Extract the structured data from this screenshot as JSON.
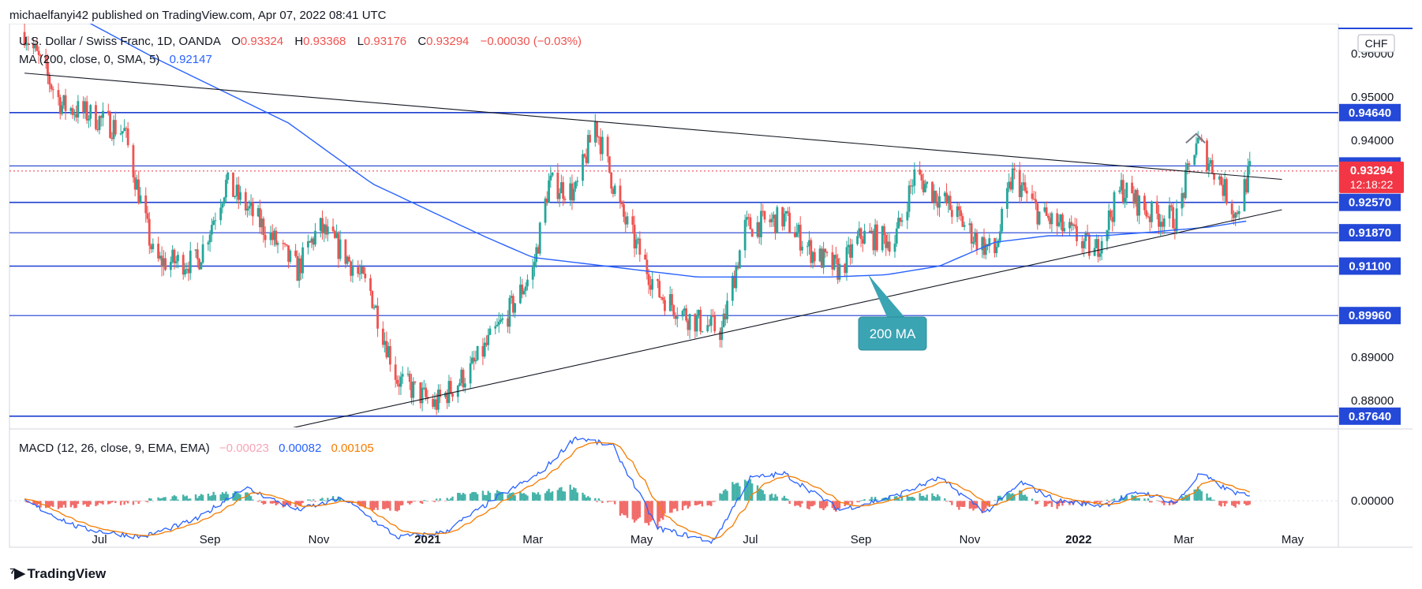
{
  "publish_line": "michaelfanyi42 published on TradingView.com, Apr 07, 2022 08:41 UTC",
  "footer_brand": "TradingView",
  "legend": {
    "symbol": "U.S. Dollar / Swiss Franc, 1D, OANDA",
    "o_label": "O",
    "o_value": "0.93324",
    "h_label": "H",
    "h_value": "0.93368",
    "l_label": "L",
    "l_value": "0.93176",
    "c_label": "C",
    "c_value": "0.93294",
    "change": "−0.00030 (−0.03%)",
    "ma_label": "MA (200, close, 0, SMA, 5)",
    "ma_value": "0.92147",
    "macd_label": "MACD (12, 26, close, 9, EMA, EMA)",
    "macd_hist": "−0.00023",
    "macd_line": "0.00082",
    "macd_signal": "0.00105"
  },
  "currency_badge": "CHF",
  "annotation": "200 MA",
  "countdown": "12:18:22",
  "colors": {
    "up": "#26a69a",
    "down": "#ef5350",
    "ma": "#2962ff",
    "level": "#1e3fd1",
    "macd": "#2962ff",
    "signal": "#f57c00",
    "tag": "#2449d8",
    "price_tag": "#f23645",
    "annotation": "#3aa4b3"
  },
  "chart_data": {
    "type": "candlestick",
    "x_ticks": [
      "Jul",
      "Sep",
      "Nov",
      "2021",
      "Mar",
      "May",
      "Jul",
      "Sep",
      "Nov",
      "2022",
      "Mar",
      "May"
    ],
    "y_ticks": [
      "0.96000",
      "0.95000",
      "0.94000",
      "0.89000",
      "0.88000"
    ],
    "y_range": [
      0.8735,
      0.9615
    ],
    "last_price": "0.93294",
    "horizontal_levels": [
      {
        "value": 0.9464,
        "label": "0.94640"
      },
      {
        "value": 0.9341,
        "label": "0.93410"
      },
      {
        "value": 0.9257,
        "label": "0.92570"
      },
      {
        "value": 0.9187,
        "label": "0.91870"
      },
      {
        "value": 0.911,
        "label": "0.91100"
      },
      {
        "value": 0.8996,
        "label": "0.89960"
      },
      {
        "value": 0.8764,
        "label": "0.87640"
      }
    ],
    "trendlines": [
      {
        "name": "descending",
        "from": [
          "2020-05-20",
          0.9555
        ],
        "to": [
          "2022-04-25",
          0.931
        ]
      },
      {
        "name": "ascending",
        "from": [
          "2020-10-15",
          0.8735
        ],
        "to": [
          "2022-04-25",
          0.924
        ]
      }
    ],
    "ma200_anchors": [
      [
        "2020-08-01",
        0.959
      ],
      [
        "2020-10-15",
        0.944
      ],
      [
        "2020-12-01",
        0.93
      ],
      [
        "2021-02-01",
        0.918
      ],
      [
        "2021-03-01",
        0.913
      ],
      [
        "2021-04-01",
        0.9115
      ],
      [
        "2021-05-01",
        0.91
      ],
      [
        "2021-06-01",
        0.9085
      ],
      [
        "2021-07-01",
        0.9085
      ],
      [
        "2021-08-15",
        0.9085
      ],
      [
        "2021-09-15",
        0.909
      ],
      [
        "2021-10-15",
        0.911
      ],
      [
        "2021-11-15",
        0.9165
      ],
      [
        "2021-12-15",
        0.918
      ],
      [
        "2022-01-15",
        0.918
      ],
      [
        "2022-02-15",
        0.919
      ],
      [
        "2022-03-15",
        0.92
      ],
      [
        "2022-04-07",
        0.9215
      ]
    ],
    "price_anchors": [
      [
        "2020-05-20",
        0.965
      ],
      [
        "2020-06-10",
        0.948
      ],
      [
        "2020-06-25",
        0.946
      ],
      [
        "2020-07-15",
        0.942
      ],
      [
        "2020-08-01",
        0.912
      ],
      [
        "2020-08-25",
        0.912
      ],
      [
        "2020-09-10",
        0.93
      ],
      [
        "2020-10-01",
        0.92
      ],
      [
        "2020-10-20",
        0.91
      ],
      [
        "2020-11-01",
        0.92
      ],
      [
        "2020-11-15",
        0.914
      ],
      [
        "2020-11-30",
        0.905
      ],
      [
        "2020-12-15",
        0.885
      ],
      [
        "2021-01-05",
        0.879
      ],
      [
        "2021-01-25",
        0.887
      ],
      [
        "2021-02-15",
        0.9
      ],
      [
        "2021-03-01",
        0.91
      ],
      [
        "2021-03-10",
        0.93
      ],
      [
        "2021-03-25",
        0.928
      ],
      [
        "2021-04-05",
        0.944
      ],
      [
        "2021-04-20",
        0.923
      ],
      [
        "2021-05-10",
        0.905
      ],
      [
        "2021-05-28",
        0.899
      ],
      [
        "2021-06-15",
        0.896
      ],
      [
        "2021-06-28",
        0.92
      ],
      [
        "2021-07-20",
        0.922
      ],
      [
        "2021-08-05",
        0.914
      ],
      [
        "2021-08-20",
        0.91
      ],
      [
        "2021-09-01",
        0.918
      ],
      [
        "2021-09-20",
        0.917
      ],
      [
        "2021-10-01",
        0.932
      ],
      [
        "2021-10-20",
        0.925
      ],
      [
        "2021-11-05",
        0.917
      ],
      [
        "2021-11-15",
        0.914
      ],
      [
        "2021-11-25",
        0.932
      ],
      [
        "2021-12-10",
        0.923
      ],
      [
        "2021-12-30",
        0.918
      ],
      [
        "2022-01-10",
        0.914
      ],
      [
        "2022-01-25",
        0.929
      ],
      [
        "2022-02-10",
        0.923
      ],
      [
        "2022-02-25",
        0.922
      ],
      [
        "2022-03-08",
        0.94
      ],
      [
        "2022-03-20",
        0.932
      ],
      [
        "2022-03-30",
        0.923
      ],
      [
        "2022-04-07",
        0.9329
      ]
    ],
    "macd_range": [
      -0.0102,
      0.0158
    ],
    "macd_anchors": [
      [
        "2020-05-20",
        0.0
      ],
      [
        "2020-06-20",
        -0.006
      ],
      [
        "2020-07-25",
        -0.008
      ],
      [
        "2020-08-25",
        -0.004
      ],
      [
        "2020-09-20",
        0.003
      ],
      [
        "2020-10-20",
        -0.002
      ],
      [
        "2020-11-15",
        0.0005
      ],
      [
        "2020-12-15",
        -0.008
      ],
      [
        "2021-01-10",
        -0.007
      ],
      [
        "2021-02-10",
        0.001
      ],
      [
        "2021-03-05",
        0.006
      ],
      [
        "2021-03-25",
        0.014
      ],
      [
        "2021-04-15",
        0.012
      ],
      [
        "2021-05-10",
        -0.006
      ],
      [
        "2021-06-10",
        -0.009
      ],
      [
        "2021-07-01",
        0.005
      ],
      [
        "2021-07-20",
        0.006
      ],
      [
        "2021-08-20",
        -0.002
      ],
      [
        "2021-09-20",
        0.001
      ],
      [
        "2021-10-15",
        0.005
      ],
      [
        "2021-11-10",
        -0.0025
      ],
      [
        "2021-11-30",
        0.004
      ],
      [
        "2021-12-20",
        0.0
      ],
      [
        "2022-01-15",
        -0.001
      ],
      [
        "2022-02-05",
        0.002
      ],
      [
        "2022-02-25",
        -0.0005
      ],
      [
        "2022-03-10",
        0.006
      ],
      [
        "2022-03-25",
        0.0025
      ],
      [
        "2022-04-07",
        0.0008
      ]
    ]
  }
}
